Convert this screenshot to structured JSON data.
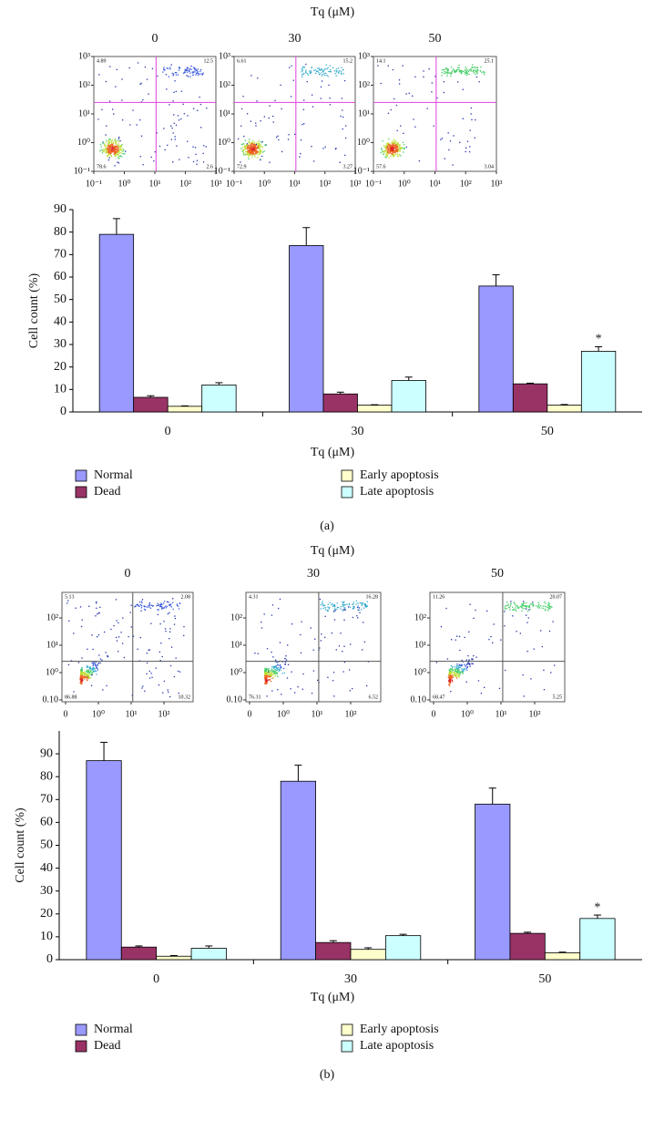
{
  "panels": [
    {
      "label": "(a)",
      "flow_title": "Tq (μM)",
      "flow_xticks": [
        "10⁻¹",
        "10⁰",
        "10¹",
        "10²",
        "10³"
      ],
      "flow_yticks": [
        "10⁻¹",
        "10⁰",
        "10¹",
        "10²",
        "10³"
      ],
      "flow_plots": [
        {
          "title": "0",
          "quadrants": [
            4.89,
            12.5,
            78.6,
            2.6
          ]
        },
        {
          "title": "30",
          "quadrants": [
            6.61,
            15.2,
            72.9,
            3.27
          ]
        },
        {
          "title": "50",
          "quadrants": [
            14.1,
            25.1,
            57.6,
            3.04
          ]
        }
      ]
    },
    {
      "label": "(b)",
      "flow_title": "Tq (μM)",
      "flow_xticks": [
        "0",
        "10⁰",
        "10¹",
        "10²"
      ],
      "flow_yticks": [
        "0.10",
        "10⁰",
        "10¹",
        "10²"
      ],
      "flow_plots": [
        {
          "title": "0",
          "quadrants": [
            5.13,
            2.08,
            86.88,
            10.32
          ]
        },
        {
          "title": "30",
          "quadrants": [
            4.31,
            16.28,
            76.31,
            6.52
          ]
        },
        {
          "title": "50",
          "quadrants": [
            11.26,
            20.07,
            68.47,
            5.25
          ]
        }
      ]
    }
  ],
  "chart_data": [
    {
      "type": "bar",
      "categories": [
        "0",
        "30",
        "50"
      ],
      "xlabel": "Tq (μM)",
      "ylabel": "Cell count (%)",
      "ylim": [
        0,
        90
      ],
      "yticks": [
        0,
        10,
        20,
        30,
        40,
        50,
        60,
        70,
        80,
        90
      ],
      "annotation": "*",
      "series": [
        {
          "name": "Normal",
          "color": "#9999ff",
          "values": [
            79,
            74,
            56
          ],
          "errors": [
            7,
            8,
            5
          ]
        },
        {
          "name": "Dead",
          "color": "#993366",
          "values": [
            6.5,
            8,
            12.5
          ],
          "errors": [
            0.7,
            0.8,
            0.3
          ]
        },
        {
          "name": "Early apoptosis",
          "color": "#ffffcc",
          "values": [
            2.5,
            3,
            3
          ],
          "errors": [
            0.2,
            0.2,
            0.3
          ]
        },
        {
          "name": "Late apoptosis",
          "color": "#ccffff",
          "values": [
            12,
            14,
            27
          ],
          "errors": [
            1,
            1.5,
            2
          ]
        }
      ]
    },
    {
      "type": "bar",
      "categories": [
        "0",
        "30",
        "50"
      ],
      "xlabel": "Tq (μM)",
      "ylabel": "Cell count (%)",
      "ylim": [
        0,
        100
      ],
      "yticks": [
        0,
        10,
        20,
        30,
        40,
        50,
        60,
        70,
        80,
        90
      ],
      "annotation": "*",
      "series": [
        {
          "name": "Normal",
          "color": "#9999ff",
          "values": [
            87,
            78,
            68
          ],
          "errors": [
            8,
            7,
            7
          ]
        },
        {
          "name": "Dead",
          "color": "#993366",
          "values": [
            5.5,
            7.5,
            11.5
          ],
          "errors": [
            0.5,
            0.8,
            0.5
          ]
        },
        {
          "name": "Early apoptosis",
          "color": "#ffffcc",
          "values": [
            1.5,
            4.5,
            3
          ],
          "errors": [
            0.3,
            0.7,
            0.3
          ]
        },
        {
          "name": "Late apoptosis",
          "color": "#ccffff",
          "values": [
            5,
            10.5,
            18
          ],
          "errors": [
            1,
            0.6,
            1.5
          ]
        }
      ]
    }
  ]
}
